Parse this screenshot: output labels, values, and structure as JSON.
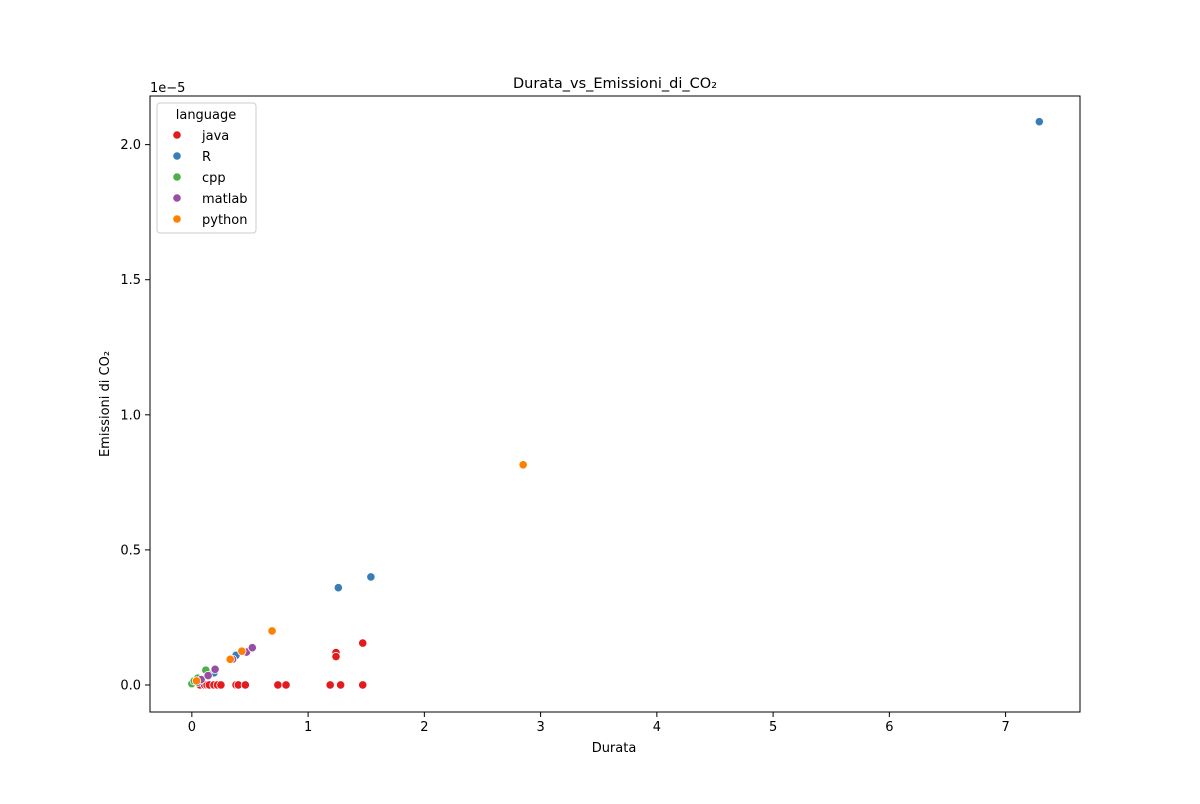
{
  "chart_data": {
    "type": "scatter",
    "title": "Durata_vs_Emissioni_di_CO₂",
    "xlabel": "Durata",
    "ylabel": "Emissioni di CO₂",
    "y_offset_label": "1e−5",
    "xlim": [
      -0.36,
      7.64
    ],
    "ylim": [
      -0.1,
      2.18
    ],
    "x_ticks": [
      0,
      1,
      2,
      3,
      4,
      5,
      6,
      7
    ],
    "x_tick_labels": [
      "0",
      "1",
      "2",
      "3",
      "4",
      "5",
      "6",
      "7"
    ],
    "y_ticks": [
      0.0,
      0.5,
      1.0,
      1.5,
      2.0
    ],
    "y_tick_labels": [
      "0.0",
      "0.5",
      "1.0",
      "1.5",
      "2.0"
    ],
    "grid": false,
    "legend": {
      "title": "language",
      "placement": "top-left"
    },
    "series": [
      {
        "name": "java",
        "color": "#e41a1c",
        "x": [
          0.07,
          0.09,
          0.11,
          0.13,
          0.15,
          0.19,
          0.22,
          0.25,
          0.38,
          0.4,
          0.46,
          0.74,
          0.81,
          1.19,
          1.24,
          1.24,
          1.28,
          1.47,
          1.47
        ],
        "y": [
          0.0,
          0.01,
          0.0,
          0.0,
          0.0,
          0.0,
          0.0,
          0.0,
          0.0,
          0.0,
          0.0,
          0.0,
          0.0,
          0.0,
          0.12,
          0.105,
          0.0,
          0.0,
          0.155
        ]
      },
      {
        "name": "R",
        "color": "#377eb8",
        "x": [
          0.05,
          0.19,
          0.38,
          1.26,
          1.54,
          7.29
        ],
        "y": [
          0.01,
          0.045,
          0.11,
          0.36,
          0.4,
          2.085
        ]
      },
      {
        "name": "cpp",
        "color": "#4daf4a",
        "x": [
          0.0,
          0.02,
          0.05,
          0.12
        ],
        "y": [
          0.005,
          0.015,
          0.025,
          0.055
        ]
      },
      {
        "name": "matlab",
        "color": "#984ea3",
        "x": [
          0.08,
          0.14,
          0.2,
          0.35,
          0.47,
          0.52
        ],
        "y": [
          0.02,
          0.035,
          0.058,
          0.095,
          0.122,
          0.138
        ]
      },
      {
        "name": "python",
        "color": "#ff7f00",
        "x": [
          0.04,
          0.33,
          0.43,
          0.69,
          2.85
        ],
        "y": [
          0.015,
          0.095,
          0.125,
          0.2,
          0.815
        ]
      }
    ]
  }
}
